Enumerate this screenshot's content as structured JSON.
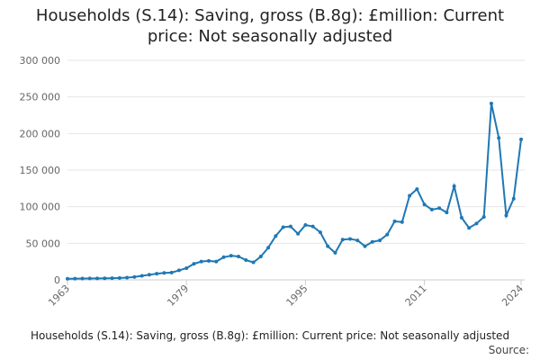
{
  "chart_data": {
    "type": "line",
    "title": "Households (S.14): Saving, gross (B.8g): £million: Current price: Not seasonally adjusted",
    "caption": "Households (S.14): Saving, gross (B.8g): £million: Current price: Not seasonally adjusted",
    "source": "Source:",
    "x": [
      1963,
      1964,
      1965,
      1966,
      1967,
      1968,
      1969,
      1970,
      1971,
      1972,
      1973,
      1974,
      1975,
      1976,
      1977,
      1978,
      1979,
      1980,
      1981,
      1982,
      1983,
      1984,
      1985,
      1986,
      1987,
      1988,
      1989,
      1990,
      1991,
      1992,
      1993,
      1994,
      1995,
      1996,
      1997,
      1998,
      1999,
      2000,
      2001,
      2002,
      2003,
      2004,
      2005,
      2006,
      2007,
      2008,
      2009,
      2010,
      2011,
      2012,
      2013,
      2014,
      2015,
      2016,
      2017,
      2018,
      2019,
      2020,
      2021,
      2022,
      2023,
      2024
    ],
    "series": [
      {
        "name": "Households (S.14): Saving, gross (B.8g): £million: Current price: Not seasonally adjusted",
        "color": "#1f78b4",
        "values": [
          1500,
          1700,
          1900,
          2000,
          2000,
          2100,
          2300,
          2600,
          3000,
          4000,
          5500,
          7000,
          8500,
          9500,
          10000,
          13000,
          16000,
          22000,
          25000,
          26000,
          25000,
          31000,
          33000,
          32000,
          27000,
          24000,
          32000,
          44000,
          60000,
          72000,
          73000,
          63000,
          75000,
          73000,
          65000,
          46000,
          37000,
          55000,
          56000,
          54000,
          46000,
          52000,
          54000,
          62000,
          80000,
          79000,
          115000,
          124000,
          103000,
          96000,
          98000,
          92000,
          128000,
          85000,
          71000,
          77000,
          86000,
          241000,
          194000,
          88000,
          111000,
          192000
        ]
      }
    ],
    "xlim": [
      1963,
      2024
    ],
    "xticks": [
      1963,
      1979,
      1995,
      2011,
      2024
    ],
    "ylim": [
      0,
      300000
    ],
    "yticks": [
      0,
      {
        "value": 50000,
        "label": "50 000"
      },
      {
        "value": 100000,
        "label": "100 000"
      },
      {
        "value": 150000,
        "label": "150 000"
      },
      {
        "value": 200000,
        "label": "200 000"
      },
      {
        "value": 250000,
        "label": "250 000"
      },
      {
        "value": 300000,
        "label": "300 000"
      }
    ],
    "grid": true
  }
}
